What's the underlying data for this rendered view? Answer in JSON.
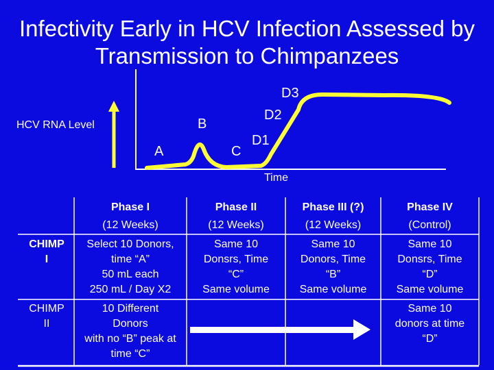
{
  "title": "Infectivity Early in HCV Infection Assessed by Transmission to Chimpanzees",
  "diagram": {
    "y_label": "HCV RNA Level",
    "x_label": "Time",
    "points": {
      "a": "A",
      "b": "B",
      "c": "C",
      "d1": "D1",
      "d2": "D2",
      "d3": "D3"
    }
  },
  "table": {
    "headers": [
      {
        "l1": "Phase I",
        "l2": "(12 Weeks)"
      },
      {
        "l1": "Phase II",
        "l2": "(12 Weeks)"
      },
      {
        "l1": "Phase III (?)",
        "l2": "(12 Weeks)"
      },
      {
        "l1": "Phase IV",
        "l2": "(Control)"
      }
    ],
    "rows": [
      {
        "label1": "CHIMP",
        "label2": "I",
        "cells": [
          [
            "Select 10 Donors,",
            "time “A”",
            "50 mL each",
            "250 mL / Day X2"
          ],
          [
            "Same 10",
            "Donsrs, Time",
            "“C”",
            "Same volume"
          ],
          [
            "Same 10",
            "Donors, Time",
            "“B”",
            "Same volume"
          ],
          [
            "Same 10",
            "Donsrs, Time",
            "“D”",
            "Same volume"
          ]
        ]
      },
      {
        "label1": "CHIMP",
        "label2": "II",
        "cells": [
          [
            "10 Different",
            "Donors",
            "with no “B” peak at",
            "time “C”"
          ],
          [
            "Same 10",
            "donors at time",
            "“D”"
          ]
        ]
      }
    ]
  }
}
